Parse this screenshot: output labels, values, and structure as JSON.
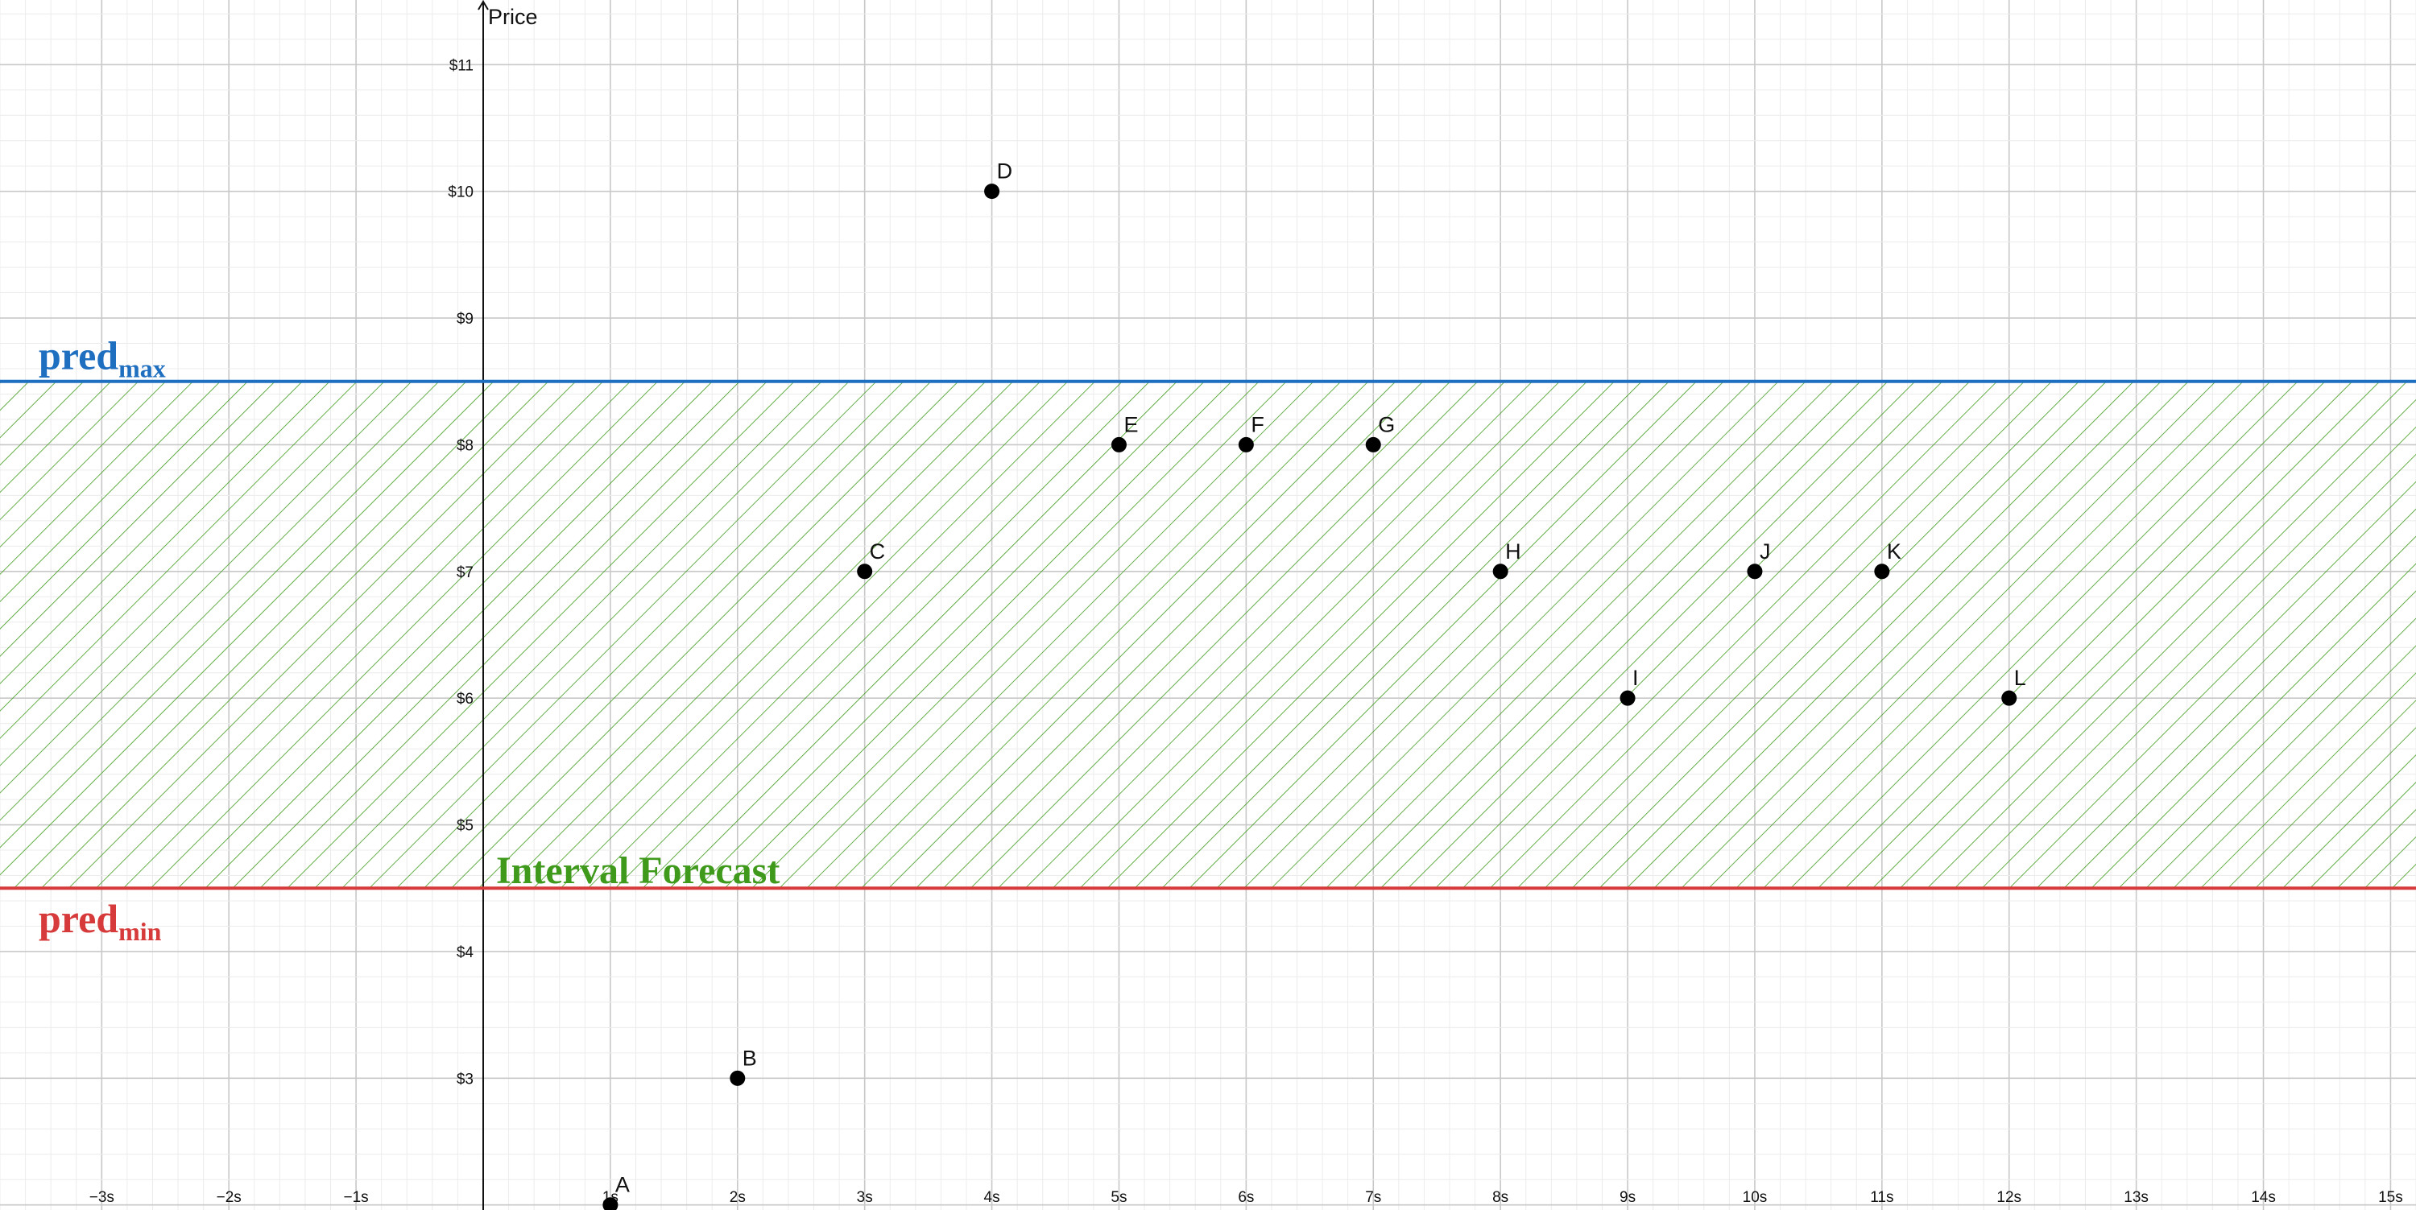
{
  "chart_data": {
    "type": "scatter",
    "ylabel": "Price",
    "xlim": [
      -3.8,
      15.2
    ],
    "ylim": [
      1.96,
      11.51
    ],
    "x_ticks": [
      -3,
      -2,
      -1,
      1,
      2,
      3,
      4,
      5,
      6,
      7,
      8,
      9,
      10,
      11,
      12,
      13,
      14,
      15
    ],
    "x_tick_labels": [
      "−3s",
      "−2s",
      "−1s",
      "1s",
      "2s",
      "3s",
      "4s",
      "5s",
      "6s",
      "7s",
      "8s",
      "9s",
      "10s",
      "11s",
      "12s",
      "13s",
      "14s",
      "15s"
    ],
    "y_ticks": [
      3,
      4,
      5,
      6,
      7,
      8,
      9,
      10,
      11
    ],
    "y_tick_labels": [
      "$3",
      "$4",
      "$5",
      "$6",
      "$7",
      "$8",
      "$9",
      "$10",
      "$11"
    ],
    "grid": true,
    "points": [
      {
        "label": "A",
        "x": 1,
        "y": 2
      },
      {
        "label": "B",
        "x": 2,
        "y": 3
      },
      {
        "label": "C",
        "x": 3,
        "y": 7
      },
      {
        "label": "D",
        "x": 4,
        "y": 10
      },
      {
        "label": "E",
        "x": 5,
        "y": 8
      },
      {
        "label": "F",
        "x": 6,
        "y": 8
      },
      {
        "label": "G",
        "x": 7,
        "y": 8
      },
      {
        "label": "H",
        "x": 8,
        "y": 7
      },
      {
        "label": "I",
        "x": 9,
        "y": 6
      },
      {
        "label": "J",
        "x": 10,
        "y": 7
      },
      {
        "label": "K",
        "x": 11,
        "y": 7
      },
      {
        "label": "L",
        "x": 12,
        "y": 6
      }
    ],
    "pred_max": {
      "value": 8.5,
      "label_main": "pred",
      "label_sub": "max",
      "color": "#1f6fc0"
    },
    "pred_min": {
      "value": 4.5,
      "label_main": "pred",
      "label_sub": "min",
      "color": "#d63a3a"
    },
    "band": {
      "label": "Interval Forecast",
      "color": "#3f9a1c"
    },
    "colors": {
      "point": "#000000",
      "grid_major": "#c8c8c8",
      "grid_minor": "#ececec",
      "axis": "#111111"
    }
  }
}
